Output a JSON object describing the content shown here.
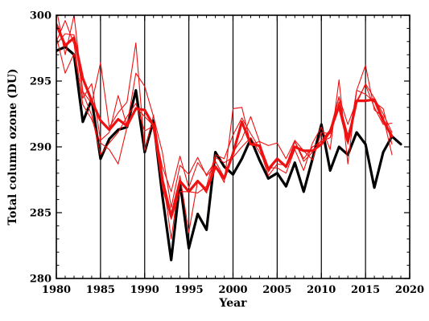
{
  "chart_data": {
    "type": "line",
    "title": "",
    "xlabel": "Year",
    "ylabel": "Total column ozone (DU)",
    "xlim": [
      1980,
      2020
    ],
    "ylim": [
      280,
      300
    ],
    "xticks": [
      1980,
      1985,
      1990,
      1995,
      2000,
      2005,
      2010,
      2015,
      2020
    ],
    "yticks": [
      280,
      285,
      290,
      295,
      300
    ],
    "vertical_gridlines": [
      1985,
      1990,
      1995,
      2000,
      2005,
      2010,
      2015
    ],
    "grid": "vertical lines at 5-year ticks",
    "legend": "none",
    "series": [
      {
        "color": "#000000",
        "width": 3.2,
        "x": [
          1980,
          1981,
          1982,
          1983,
          1984,
          1985,
          1986,
          1987,
          1988,
          1989,
          1990,
          1991,
          1992,
          1993,
          1994,
          1995,
          1996,
          1997,
          1998,
          1999,
          2000,
          2001,
          2002,
          2003,
          2004,
          2005,
          2006,
          2007,
          2008,
          2009,
          2010,
          2011,
          2012,
          2013,
          2014,
          2015,
          2016,
          2017,
          2018,
          2019
        ],
        "y": [
          297.3,
          297.6,
          297.0,
          291.9,
          293.6,
          289.1,
          290.6,
          291.3,
          291.5,
          294.3,
          289.6,
          292.0,
          286.3,
          281.4,
          287.3,
          282.3,
          284.9,
          283.7,
          289.6,
          288.5,
          287.9,
          289.1,
          290.6,
          289.0,
          287.6,
          288.0,
          287.0,
          288.8,
          286.6,
          289.1,
          291.7,
          288.2,
          290.0,
          289.4,
          291.1,
          290.2,
          286.9,
          289.6,
          290.8,
          290.2
        ]
      },
      {
        "color": "#ee1111",
        "width": 1.1,
        "x": [
          1980,
          1981,
          1982,
          1983,
          1984,
          1985,
          1986,
          1987,
          1988,
          1989,
          1990,
          1991,
          1992,
          1993,
          1994,
          1995,
          1996,
          1997,
          1998,
          1999,
          2000,
          2001,
          2002,
          2003,
          2004,
          2005,
          2006,
          2007,
          2008,
          2009,
          2010,
          2011,
          2012,
          2013,
          2014,
          2015,
          2016,
          2017,
          2018
        ],
        "y": [
          300.5,
          297.0,
          300.0,
          294.2,
          293.3,
          296.4,
          291.5,
          292.6,
          293.4,
          297.9,
          289.7,
          292.4,
          288.0,
          283.0,
          287.8,
          283.5,
          287.4,
          286.5,
          289.2,
          288.8,
          289.2,
          290.0,
          290.7,
          289.6,
          288.4,
          288.4,
          288.0,
          289.8,
          288.2,
          290.3,
          291.5,
          289.8,
          295.1,
          288.7,
          294.3,
          296.2,
          292.8,
          292.3,
          289.4
        ]
      },
      {
        "color": "#ee1111",
        "width": 1.1,
        "x": [
          1980,
          1981,
          1982,
          1983,
          1984,
          1985,
          1986,
          1987,
          1988,
          1989,
          1990,
          1991,
          1992,
          1993,
          1994,
          1995,
          1996,
          1997,
          1998,
          1999,
          2000,
          2001,
          2002,
          2003,
          2004,
          2005,
          2006,
          2007,
          2008,
          2009,
          2010,
          2011,
          2012,
          2013,
          2014,
          2015,
          2016,
          2017,
          2018
        ],
        "y": [
          298.4,
          295.6,
          297.1,
          293.7,
          294.8,
          290.5,
          291.1,
          293.9,
          291.6,
          295.6,
          294.6,
          292.3,
          289.6,
          285.4,
          288.6,
          287.9,
          289.2,
          287.8,
          288.5,
          287.3,
          292.9,
          293.0,
          290.2,
          290.4,
          290.1,
          290.3,
          289.1,
          290.5,
          289.7,
          289.0,
          291.1,
          291.0,
          293.8,
          291.7,
          293.5,
          294.7,
          293.0,
          291.7,
          291.8
        ]
      },
      {
        "color": "#ee1111",
        "width": 1.1,
        "x": [
          1980,
          1981,
          1982,
          1983,
          1984,
          1985,
          1986,
          1987,
          1988,
          1989,
          1990,
          1991,
          1992,
          1993,
          1994,
          1995,
          1996,
          1997,
          1998,
          1999,
          2000,
          2001,
          2002,
          2003,
          2004,
          2005,
          2006,
          2007,
          2008,
          2009,
          2010,
          2011,
          2012,
          2013,
          2014,
          2015,
          2016,
          2017,
          2018
        ],
        "y": [
          297.8,
          298.6,
          298.5,
          294.1,
          292.4,
          289.4,
          290.3,
          291.1,
          292.3,
          293.3,
          291.2,
          291.6,
          288.5,
          286.6,
          289.3,
          286.9,
          288.8,
          287.9,
          288.9,
          287.7,
          289.6,
          290.6,
          292.3,
          290.4,
          288.1,
          289.1,
          288.4,
          290.4,
          288.9,
          289.6,
          290.5,
          291.3,
          293.8,
          290.2,
          294.3,
          294.0,
          293.4,
          292.9,
          290.2
        ]
      },
      {
        "color": "#ee1111",
        "width": 1.1,
        "x": [
          1980,
          1981,
          1982,
          1983,
          1984,
          1985,
          1986,
          1987,
          1988,
          1989,
          1990,
          1991,
          1992,
          1993,
          1994,
          1995,
          1996,
          1997,
          1998,
          1999,
          2000,
          2001,
          2002,
          2003,
          2004,
          2005,
          2006,
          2007,
          2008,
          2009,
          2010,
          2011,
          2012,
          2013,
          2014,
          2015,
          2016,
          2017,
          2018
        ],
        "y": [
          298.0,
          299.6,
          297.8,
          293.2,
          292.1,
          290.3,
          289.8,
          288.7,
          291.5,
          293.0,
          292.3,
          291.6,
          286.9,
          284.5,
          286.6,
          286.6,
          286.5,
          287.0,
          289.4,
          289.1,
          290.9,
          292.2,
          291.0,
          289.9,
          287.8,
          288.7,
          288.6,
          290.4,
          289.1,
          290.0,
          290.4,
          290.7,
          293.4,
          290.9,
          293.3,
          294.8,
          293.7,
          292.5,
          291.1
        ]
      },
      {
        "color": "#ee1111",
        "width": 3.2,
        "x": [
          1980,
          1981,
          1982,
          1983,
          1984,
          1985,
          1986,
          1987,
          1988,
          1989,
          1990,
          1991,
          1992,
          1993,
          1994,
          1995,
          1996,
          1997,
          1998,
          1999,
          2000,
          2001,
          2002,
          2003,
          2004,
          2005,
          2006,
          2007,
          2008,
          2009,
          2010,
          2011,
          2012,
          2013,
          2014,
          2015,
          2016,
          2017,
          2018
        ],
        "y": [
          299.3,
          297.7,
          298.3,
          295.2,
          293.5,
          292.0,
          291.3,
          292.1,
          291.6,
          292.9,
          292.8,
          291.6,
          287.5,
          284.7,
          287.4,
          286.6,
          287.4,
          286.7,
          288.5,
          287.6,
          289.5,
          291.9,
          290.2,
          290.1,
          288.3,
          289.1,
          288.5,
          290.0,
          289.7,
          289.7,
          290.2,
          291.2,
          293.1,
          290.4,
          293.5,
          293.5,
          293.6,
          292.0,
          290.8
        ]
      }
    ]
  }
}
